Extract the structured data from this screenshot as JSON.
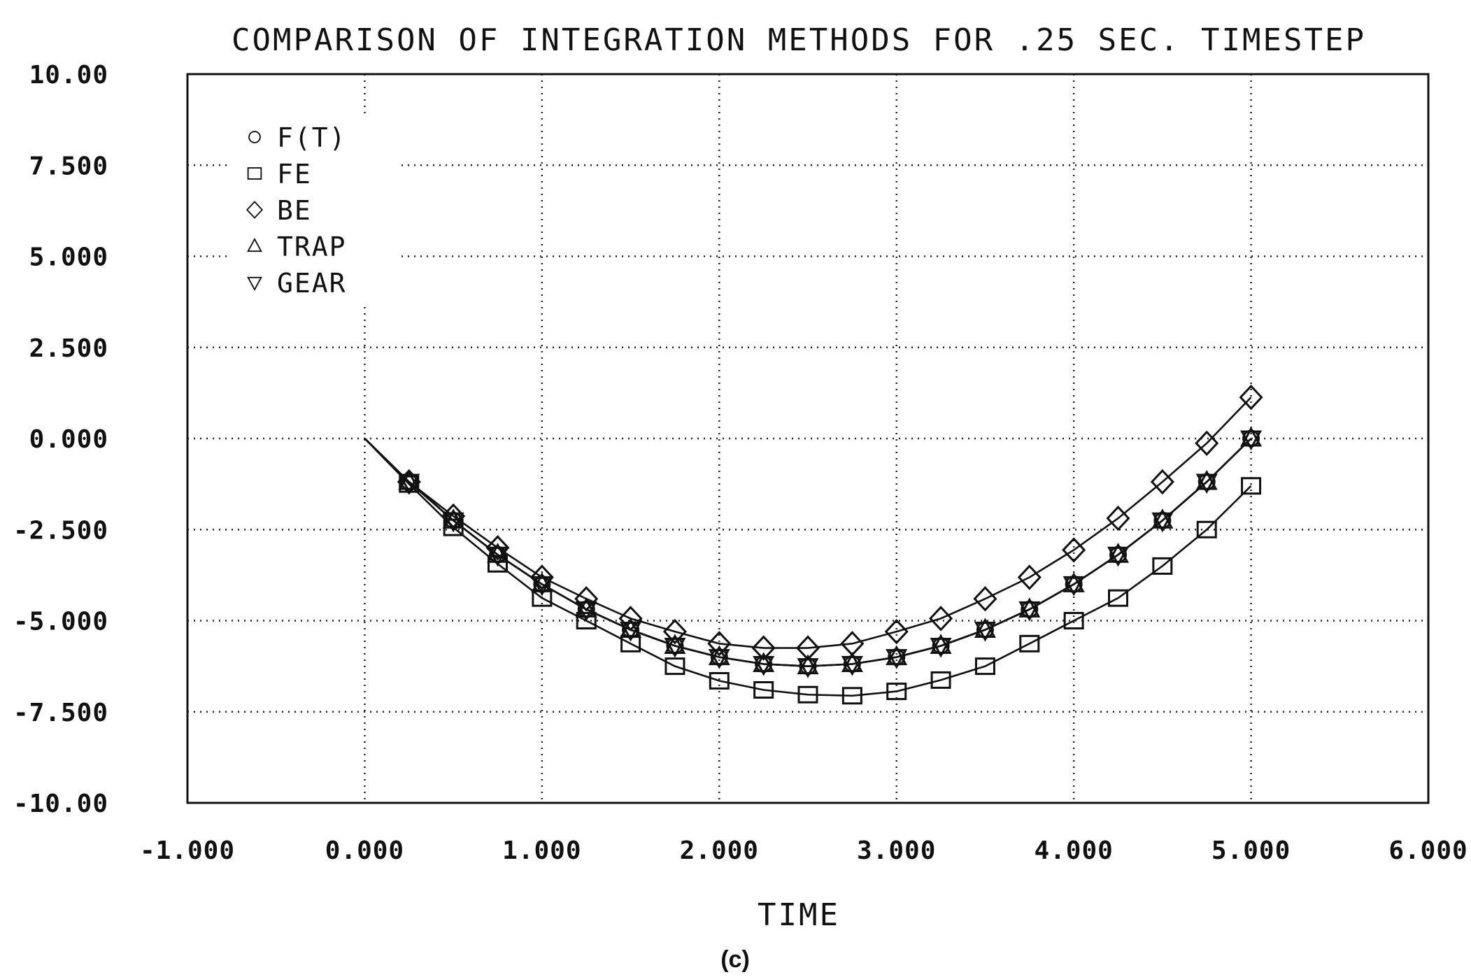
{
  "chart_data": {
    "type": "line",
    "title": "COMPARISON OF INTEGRATION METHODS FOR .25 SEC. TIMESTEP",
    "xlabel": "TIME",
    "ylabel": "",
    "caption": "(c)",
    "xlim": [
      -1.0,
      6.0
    ],
    "ylim": [
      -10.0,
      10.0
    ],
    "x_ticks": [
      -1,
      0,
      1,
      2,
      3,
      4,
      5,
      6
    ],
    "x_tick_labels": [
      "-1.000",
      "0.000",
      "1.000",
      "2.000",
      "3.000",
      "4.000",
      "5.000",
      "6.000"
    ],
    "y_ticks": [
      10,
      7.5,
      5,
      2.5,
      0,
      -2.5,
      -5,
      -7.5,
      -10
    ],
    "y_tick_labels": [
      "10.00",
      "7.500",
      "5.000",
      "2.500",
      "0.000",
      "-2.500",
      "-5.000",
      "-7.500",
      "-10.00"
    ],
    "grid": true,
    "legend_position": "top-left",
    "x": [
      0.0,
      0.25,
      0.5,
      0.75,
      1.0,
      1.25,
      1.5,
      1.75,
      2.0,
      2.25,
      2.5,
      2.75,
      3.0,
      3.25,
      3.5,
      3.75,
      4.0,
      4.25,
      4.5,
      4.75,
      5.0
    ],
    "series": [
      {
        "name": "F(T)",
        "marker": "circle",
        "values": [
          0.0,
          -1.19,
          -2.25,
          -3.19,
          -4.0,
          -4.69,
          -5.25,
          -5.69,
          -6.0,
          -6.19,
          -6.25,
          -6.19,
          -6.0,
          -5.69,
          -5.25,
          -4.69,
          -4.0,
          -3.19,
          -2.25,
          -1.19,
          0.0
        ]
      },
      {
        "name": "FE",
        "marker": "square",
        "values": [
          0.0,
          -1.25,
          -2.44,
          -3.44,
          -4.38,
          -5.0,
          -5.63,
          -6.25,
          -6.65,
          -6.9,
          -7.03,
          -7.06,
          -6.94,
          -6.63,
          -6.25,
          -5.63,
          -5.0,
          -4.38,
          -3.5,
          -2.5,
          -1.3
        ]
      },
      {
        "name": "BE",
        "marker": "diamond",
        "values": [
          0.0,
          -1.19,
          -2.13,
          -3.0,
          -3.81,
          -4.4,
          -4.94,
          -5.3,
          -5.63,
          -5.75,
          -5.75,
          -5.63,
          -5.3,
          -4.94,
          -4.4,
          -3.81,
          -3.06,
          -2.19,
          -1.19,
          -0.13,
          1.13
        ]
      },
      {
        "name": "TRAP",
        "marker": "triangle-up",
        "values": [
          0.0,
          -1.19,
          -2.25,
          -3.19,
          -4.0,
          -4.69,
          -5.25,
          -5.69,
          -6.0,
          -6.19,
          -6.25,
          -6.19,
          -6.0,
          -5.69,
          -5.25,
          -4.69,
          -4.0,
          -3.19,
          -2.25,
          -1.19,
          0.0
        ]
      },
      {
        "name": "GEAR",
        "marker": "triangle-down",
        "values": [
          0.0,
          -1.19,
          -2.25,
          -3.19,
          -4.0,
          -4.69,
          -5.25,
          -5.69,
          -6.0,
          -6.19,
          -6.25,
          -6.19,
          -6.0,
          -5.69,
          -5.25,
          -4.69,
          -4.0,
          -3.19,
          -2.25,
          -1.19,
          0.0
        ]
      }
    ]
  }
}
